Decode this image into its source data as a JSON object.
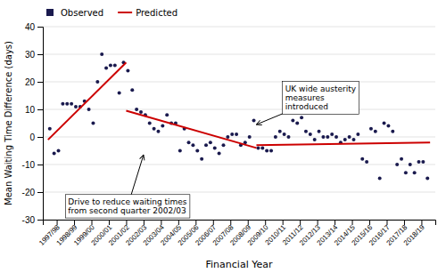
{
  "chart_data": {
    "type": "scatter",
    "xlabel": "Financial Year",
    "ylabel": "Mean Waiting Time Difference (days)",
    "xlim": [
      -0.3,
      22.3
    ],
    "ylim": [
      -30,
      40
    ],
    "xticks": [
      {
        "value": 0.5,
        "label": "1997/98"
      },
      {
        "value": 1.5,
        "label": "1998/99"
      },
      {
        "value": 2.5,
        "label": "1999/00"
      },
      {
        "value": 3.5,
        "label": "2000/01"
      },
      {
        "value": 4.5,
        "label": "2001/02"
      },
      {
        "value": 5.5,
        "label": "2002/03"
      },
      {
        "value": 6.5,
        "label": "2003/04"
      },
      {
        "value": 7.5,
        "label": "2004/05"
      },
      {
        "value": 8.5,
        "label": "2005/06"
      },
      {
        "value": 9.5,
        "label": "2006/07"
      },
      {
        "value": 10.5,
        "label": "2007/08"
      },
      {
        "value": 11.5,
        "label": "2008/09"
      },
      {
        "value": 12.5,
        "label": "2009/10"
      },
      {
        "value": 13.5,
        "label": "2010/11"
      },
      {
        "value": 14.5,
        "label": "2011/12"
      },
      {
        "value": 15.5,
        "label": "2012/13"
      },
      {
        "value": 16.5,
        "label": "2013/14"
      },
      {
        "value": 17.5,
        "label": "2014/15"
      },
      {
        "value": 18.5,
        "label": "2015/16"
      },
      {
        "value": 19.5,
        "label": "2016/17"
      },
      {
        "value": 20.5,
        "label": "2017/18"
      },
      {
        "value": 21.5,
        "label": "2018/19"
      }
    ],
    "yticks": [
      -30,
      -20,
      -10,
      0,
      10,
      20,
      30,
      40
    ],
    "grid": true,
    "legend": "upper-left",
    "series": [
      {
        "name": "Observed",
        "type": "scatter",
        "color": "#1a1a4e",
        "x": [
          0.1,
          0.35,
          0.6,
          0.85,
          1.1,
          1.35,
          1.6,
          1.85,
          2.1,
          2.35,
          2.6,
          2.85,
          3.1,
          3.35,
          3.6,
          3.85,
          4.1,
          4.35,
          4.6,
          4.85,
          5.1,
          5.35,
          5.6,
          5.85,
          6.1,
          6.35,
          6.6,
          6.85,
          7.1,
          7.35,
          7.6,
          7.85,
          8.1,
          8.35,
          8.6,
          8.85,
          9.1,
          9.35,
          9.6,
          9.85,
          10.1,
          10.35,
          10.6,
          10.85,
          11.1,
          11.35,
          11.6,
          11.85,
          12.1,
          12.35,
          12.6,
          12.85,
          13.1,
          13.35,
          13.6,
          13.85,
          14.1,
          14.35,
          14.6,
          14.85,
          15.1,
          15.35,
          15.6,
          15.85,
          16.1,
          16.35,
          16.6,
          16.85,
          17.1,
          17.35,
          17.6,
          17.85,
          18.1,
          18.35,
          18.6,
          18.85,
          19.1,
          19.35,
          19.6,
          19.85,
          20.1,
          20.35,
          20.6,
          20.85,
          21.1,
          21.35,
          21.6,
          21.85
        ],
        "values": [
          3,
          -6,
          -5,
          12,
          12,
          12,
          11,
          11,
          13,
          10,
          5,
          20,
          30,
          25,
          26,
          26,
          16,
          27,
          24,
          17,
          10,
          9,
          8,
          5,
          3,
          2,
          4,
          8,
          5,
          5,
          -5,
          3,
          -2,
          -3,
          -5,
          -8,
          -3,
          -2,
          -4,
          -6,
          -3,
          0,
          1,
          1,
          -3,
          -2,
          0,
          6,
          -4,
          -4,
          -5,
          -5,
          0,
          2,
          1,
          0,
          6,
          5,
          7,
          2,
          1,
          -1,
          2,
          0,
          0,
          1,
          0,
          -2,
          -1,
          0,
          -1,
          1,
          -8,
          -9,
          3,
          2,
          -15,
          5,
          4,
          2,
          -10,
          -8,
          -13,
          -10,
          -13,
          -9,
          -9,
          -15
        ]
      },
      {
        "name": "Predicted",
        "type": "line",
        "color": "#cc0000",
        "x": [
          0.0,
          4.5
        ],
        "values": [
          -1.0,
          27.0
        ]
      },
      {
        "type": "line",
        "color": "#cc0000",
        "x": [
          4.5,
          12.0
        ],
        "values": [
          9.5,
          -4.0
        ]
      },
      {
        "type": "line",
        "color": "#cc0000",
        "x": [
          12.0,
          22.0
        ],
        "values": [
          -3.0,
          -2.0
        ]
      }
    ],
    "annotations": [
      {
        "text": "Drive to reduce waiting times\nfrom second quarter 2002/03",
        "x": 5.5,
        "y": -6.5,
        "text_x": 1.0,
        "text_y": -21
      },
      {
        "text": "UK wide austerity\nmeasures\nintroduced",
        "x": 12.0,
        "y": 4.5,
        "text_x": 13.5,
        "text_y": 20
      }
    ]
  }
}
